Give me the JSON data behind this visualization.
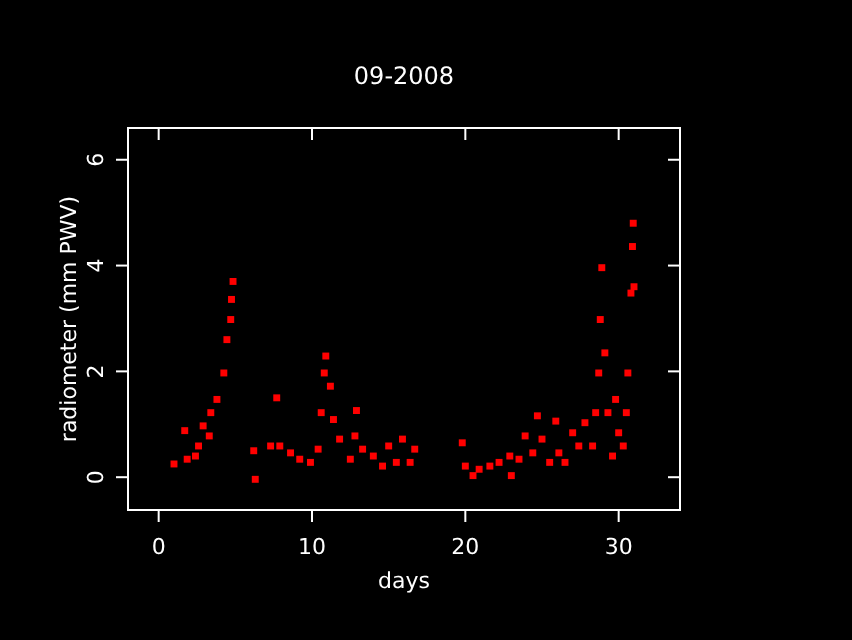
{
  "chart_data": {
    "type": "scatter",
    "title": "09-2008",
    "xlabel": "days",
    "ylabel": "radiometer (mm PWV)",
    "xlim": [
      -2,
      34
    ],
    "ylim": [
      -0.62,
      6.6
    ],
    "xticks": [
      0,
      10,
      20,
      30
    ],
    "yticks": [
      0,
      2,
      4,
      6
    ],
    "grid": false,
    "marker": "square",
    "series": [
      {
        "color": "#ff0000",
        "x": [
          1.0,
          1.7,
          1.86,
          2.4,
          2.6,
          2.9,
          3.3,
          3.4,
          3.8,
          4.25,
          4.45,
          4.7,
          4.75,
          4.85,
          6.2,
          6.3,
          7.3,
          7.7,
          7.9,
          8.6,
          9.2,
          9.9,
          10.4,
          10.6,
          10.8,
          10.9,
          11.2,
          11.4,
          11.8,
          12.5,
          12.8,
          12.9,
          13.3,
          14.0,
          14.6,
          15.0,
          15.5,
          15.9,
          16.4,
          16.7,
          19.8,
          20.0,
          20.5,
          20.9,
          21.6,
          22.2,
          22.9,
          23.0,
          23.5,
          23.9,
          24.4,
          24.7,
          25.0,
          25.5,
          25.9,
          26.1,
          26.5,
          27.0,
          27.4,
          27.8,
          28.3,
          28.5,
          28.7,
          28.8,
          28.9,
          29.1,
          29.3,
          29.6,
          29.8,
          30.0,
          30.3,
          30.5,
          30.6,
          30.8,
          30.9,
          30.95,
          31.0
        ],
        "values": [
          0.25,
          0.88,
          0.34,
          0.4,
          0.59,
          0.97,
          0.78,
          1.22,
          1.47,
          1.97,
          2.6,
          2.98,
          3.36,
          3.7,
          0.5,
          -0.04,
          0.59,
          1.5,
          0.59,
          0.46,
          0.34,
          0.28,
          0.53,
          1.22,
          1.97,
          2.29,
          1.72,
          1.09,
          0.72,
          0.34,
          0.78,
          1.26,
          0.53,
          0.4,
          0.21,
          0.59,
          0.28,
          0.72,
          0.28,
          0.53,
          0.65,
          0.21,
          0.03,
          0.15,
          0.21,
          0.28,
          0.4,
          0.03,
          0.34,
          0.78,
          0.46,
          1.16,
          0.72,
          0.28,
          1.06,
          0.46,
          0.28,
          0.84,
          0.59,
          1.03,
          0.59,
          1.22,
          1.97,
          2.98,
          3.96,
          2.35,
          1.22,
          0.4,
          1.47,
          0.84,
          0.59,
          1.22,
          1.97,
          3.48,
          4.36,
          4.8,
          3.6
        ]
      }
    ]
  }
}
